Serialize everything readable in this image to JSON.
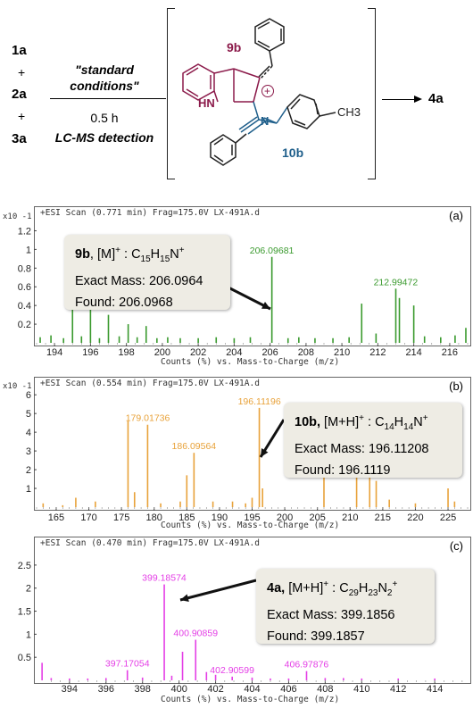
{
  "scheme": {
    "reactants": [
      "1a",
      "2a",
      "3a"
    ],
    "plus": "+",
    "condition_line1": "\"standard",
    "condition_line2": "conditions\"",
    "time": "0.5 h",
    "detection": "LC-MS detection",
    "product": "4a",
    "intermediate_labels": {
      "label_9b": "9b",
      "label_10b": "10b",
      "hn": "HN",
      "n": "N",
      "plus_charge": "+",
      "ch3": "CH3"
    },
    "colors": {
      "label_9b": "#8b1a4a",
      "label_10b": "#1f5f8b",
      "ring_9b": "#8b1a4a",
      "chain_10b": "#1f5f8b"
    }
  },
  "chart_data": [
    {
      "type": "bar",
      "panel": "(a)",
      "title": "+ESI Scan (0.771 min) Frag=175.0V LX-491A.d",
      "xlabel": "Counts (%) vs. Mass-to-Charge (m/z)",
      "y_multiplier": "x10 -1",
      "xlim": [
        193,
        217
      ],
      "ylim": [
        0,
        1.3
      ],
      "xticks": [
        "194",
        "196",
        "198",
        "200",
        "202",
        "204",
        "206",
        "208",
        "210",
        "212",
        "214",
        "216"
      ],
      "yticks": [
        "0.2",
        "0.4",
        "0.6",
        "0.8",
        "1",
        "1.2"
      ],
      "color": "#3a9a2e",
      "peaks": [
        {
          "x": 193.2,
          "y": 0.06
        },
        {
          "x": 193.8,
          "y": 0.08
        },
        {
          "x": 194.5,
          "y": 0.05
        },
        {
          "x": 195.0,
          "y": 0.5
        },
        {
          "x": 195.5,
          "y": 0.07
        },
        {
          "x": 196.0,
          "y": 0.36
        },
        {
          "x": 196.5,
          "y": 0.05
        },
        {
          "x": 197.0,
          "y": 0.3
        },
        {
          "x": 197.6,
          "y": 0.07
        },
        {
          "x": 198.1,
          "y": 0.2
        },
        {
          "x": 198.6,
          "y": 0.06
        },
        {
          "x": 199.1,
          "y": 0.18
        },
        {
          "x": 199.7,
          "y": 0.05
        },
        {
          "x": 200.3,
          "y": 0.06
        },
        {
          "x": 201.0,
          "y": 0.05
        },
        {
          "x": 202.0,
          "y": 0.05
        },
        {
          "x": 203.0,
          "y": 0.06
        },
        {
          "x": 204.0,
          "y": 0.05
        },
        {
          "x": 204.9,
          "y": 0.06
        },
        {
          "x": 206.1,
          "y": 0.92
        },
        {
          "x": 207.0,
          "y": 0.05
        },
        {
          "x": 207.6,
          "y": 0.06
        },
        {
          "x": 208.5,
          "y": 0.05
        },
        {
          "x": 209.5,
          "y": 0.05
        },
        {
          "x": 210.4,
          "y": 0.06
        },
        {
          "x": 211.1,
          "y": 0.42
        },
        {
          "x": 211.9,
          "y": 0.1
        },
        {
          "x": 213.0,
          "y": 0.58
        },
        {
          "x": 213.2,
          "y": 0.48
        },
        {
          "x": 214.0,
          "y": 0.4
        },
        {
          "x": 214.6,
          "y": 0.07
        },
        {
          "x": 215.5,
          "y": 0.06
        },
        {
          "x": 216.3,
          "y": 0.08
        },
        {
          "x": 216.9,
          "y": 0.16
        }
      ],
      "peak_labels": [
        {
          "x": 206.09681,
          "y": 0.92,
          "text": "206.09681"
        },
        {
          "x": 212.99472,
          "y": 0.58,
          "text": "212.99472"
        }
      ],
      "callout": {
        "name": "9b",
        "species": "[M]",
        "charge": "+",
        "formula": "C15H15N+",
        "formula_parts": [
          {
            "t": "C"
          },
          {
            "sub": "15"
          },
          {
            "t": "H"
          },
          {
            "sub": "15"
          },
          {
            "t": "N"
          },
          {
            "sup": "+"
          }
        ],
        "exact_mass": "Exact Mass: 206.0964",
        "found": "Found: 206.0968"
      }
    },
    {
      "type": "bar",
      "panel": "(b)",
      "title": "+ESI Scan (0.554 min) Frag=175.0V LX-491A.d",
      "xlabel": "Counts (%) vs. Mass-to-Charge (m/z)",
      "y_multiplier": "x10 -1",
      "xlim": [
        162,
        228
      ],
      "ylim": [
        0,
        6.2
      ],
      "xticks": [
        "165",
        "170",
        "175",
        "180",
        "185",
        "190",
        "195",
        "200",
        "205",
        "210",
        "215",
        "220",
        "225"
      ],
      "yticks": [
        "1",
        "2",
        "3",
        "4",
        "5",
        "6"
      ],
      "color": "#e8a23a",
      "peaks": [
        {
          "x": 163.0,
          "y": 0.2
        },
        {
          "x": 166.0,
          "y": 0.1
        },
        {
          "x": 168.0,
          "y": 0.5
        },
        {
          "x": 171.0,
          "y": 0.3
        },
        {
          "x": 176.0,
          "y": 4.6
        },
        {
          "x": 177.0,
          "y": 0.8
        },
        {
          "x": 179.0,
          "y": 4.4
        },
        {
          "x": 181.0,
          "y": 0.2
        },
        {
          "x": 184.0,
          "y": 0.3
        },
        {
          "x": 185.0,
          "y": 1.7
        },
        {
          "x": 186.1,
          "y": 2.9
        },
        {
          "x": 189.0,
          "y": 0.3
        },
        {
          "x": 192.0,
          "y": 0.3
        },
        {
          "x": 194.0,
          "y": 0.2
        },
        {
          "x": 195.0,
          "y": 0.5
        },
        {
          "x": 196.1,
          "y": 5.3
        },
        {
          "x": 196.6,
          "y": 1.0
        },
        {
          "x": 206.0,
          "y": 2.1
        },
        {
          "x": 211.0,
          "y": 2.1
        },
        {
          "x": 213.0,
          "y": 2.1
        },
        {
          "x": 214.0,
          "y": 1.4
        },
        {
          "x": 216.0,
          "y": 0.4
        },
        {
          "x": 220.0,
          "y": 0.2
        },
        {
          "x": 225.0,
          "y": 1.0
        },
        {
          "x": 226.0,
          "y": 0.3
        }
      ],
      "peak_labels": [
        {
          "x": 179.01736,
          "y": 4.4,
          "text": "179.01736"
        },
        {
          "x": 186.09564,
          "y": 2.9,
          "text": "186.09564"
        },
        {
          "x": 196.11196,
          "y": 5.3,
          "text": "196.11196"
        }
      ],
      "callout": {
        "name": "10b,",
        "species": "[M+H]",
        "charge": "+",
        "formula": "C14H14N+",
        "formula_parts": [
          {
            "t": "C"
          },
          {
            "sub": "14"
          },
          {
            "t": "H"
          },
          {
            "sub": "14"
          },
          {
            "t": "N"
          },
          {
            "sup": "+"
          }
        ],
        "exact_mass": "Exact Mass: 196.11208",
        "found": "Found: 196.1119"
      }
    },
    {
      "type": "bar",
      "panel": "(c)",
      "title": "+ESI Scan (0.470 min) Frag=175.0V LX-491A.d",
      "xlabel": "Counts (%) vs. Mass-to-Charge (m/z)",
      "y_multiplier": "",
      "xlim": [
        392.2,
        415.8
      ],
      "ylim": [
        0,
        2.75
      ],
      "xticks": [
        "394",
        "396",
        "398",
        "400",
        "402",
        "404",
        "406",
        "408",
        "410",
        "412",
        "414"
      ],
      "yticks": [
        "0.5",
        "1",
        "1.5",
        "2",
        "2.5"
      ],
      "color": "#e43fe6",
      "peaks": [
        {
          "x": 392.5,
          "y": 0.38
        },
        {
          "x": 393.0,
          "y": 0.05
        },
        {
          "x": 394.0,
          "y": 0.04
        },
        {
          "x": 395.0,
          "y": 0.04
        },
        {
          "x": 396.0,
          "y": 0.05
        },
        {
          "x": 397.17,
          "y": 0.22
        },
        {
          "x": 398.0,
          "y": 0.06
        },
        {
          "x": 399.19,
          "y": 2.08
        },
        {
          "x": 399.6,
          "y": 0.1
        },
        {
          "x": 400.19,
          "y": 0.62
        },
        {
          "x": 400.91,
          "y": 0.88
        },
        {
          "x": 401.5,
          "y": 0.18
        },
        {
          "x": 402.0,
          "y": 0.12
        },
        {
          "x": 402.91,
          "y": 0.08
        },
        {
          "x": 404.0,
          "y": 0.06
        },
        {
          "x": 405.0,
          "y": 0.04
        },
        {
          "x": 406.0,
          "y": 0.04
        },
        {
          "x": 406.98,
          "y": 0.2
        },
        {
          "x": 408.0,
          "y": 0.05
        },
        {
          "x": 409.0,
          "y": 0.05
        },
        {
          "x": 410.0,
          "y": 0.04
        },
        {
          "x": 412.0,
          "y": 0.04
        },
        {
          "x": 414.0,
          "y": 0.04
        }
      ],
      "peak_labels": [
        {
          "x": 397.17054,
          "y": 0.22,
          "text": "397.17054"
        },
        {
          "x": 399.18574,
          "y": 2.08,
          "text": "399.18574"
        },
        {
          "x": 400.90859,
          "y": 0.88,
          "text": "400.90859"
        },
        {
          "x": 402.90599,
          "y": 0.08,
          "text": "402.90599"
        },
        {
          "x": 406.97876,
          "y": 0.2,
          "text": "406.97876"
        }
      ],
      "callout": {
        "name": "4a,",
        "species": "[M+H]",
        "charge": "+",
        "formula": "C29H23N2+",
        "formula_parts": [
          {
            "t": "C"
          },
          {
            "sub": "29"
          },
          {
            "t": "H"
          },
          {
            "sub": "23"
          },
          {
            "t": "N"
          },
          {
            "sub": "2"
          },
          {
            "sup": "+"
          }
        ],
        "exact_mass": "Exact Mass: 399.1856",
        "found": "Found: 399.1857"
      }
    }
  ]
}
